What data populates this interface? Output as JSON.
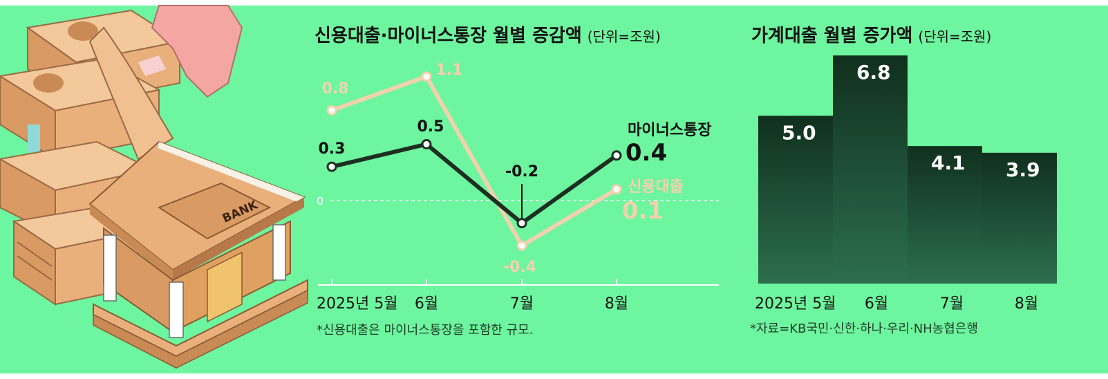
{
  "colors": {
    "background": "#6ef59f",
    "credit_line": "#f2d2ad",
    "minus_line": "#1d2f22",
    "bar_top": "#10301e",
    "bar_bottom": "#2c6e4d",
    "bank_wall": "#e0a060",
    "money": "#e9b07c"
  },
  "illustration": {
    "bank_sign": "BANK"
  },
  "chart_data": [
    {
      "type": "line",
      "title": "신용대출·마이너스통장 월별 증감액",
      "unit_label": "(단위=조원)",
      "categories": [
        "2025년 5월",
        "6월",
        "7월",
        "8월"
      ],
      "zero_label": "0",
      "ylim": [
        -0.5,
        1.2
      ],
      "series": [
        {
          "name": "신용대출",
          "values": [
            0.8,
            1.1,
            -0.4,
            0.1
          ],
          "labels": [
            "0.8",
            "1.1",
            "-0.4",
            "0.1"
          ]
        },
        {
          "name": "마이너스통장",
          "values": [
            0.3,
            0.5,
            -0.2,
            0.4
          ],
          "labels": [
            "0.3",
            "0.5",
            "-0.2",
            "0.4"
          ]
        }
      ],
      "footnote": "*신용대출은 마이너스통장을 포함한 규모."
    },
    {
      "type": "bar",
      "title": "가계대출 월별 증가액",
      "unit_label": "(단위=조원)",
      "categories": [
        "2025년 5월",
        "6월",
        "7월",
        "8월"
      ],
      "values": [
        5.0,
        6.8,
        4.1,
        3.9
      ],
      "labels": [
        "5.0",
        "6.8",
        "4.1",
        "3.9"
      ],
      "ylim": [
        0,
        7.0
      ],
      "source": "*자료=KB국민·신한·하나·우리·NH농협은행"
    }
  ]
}
